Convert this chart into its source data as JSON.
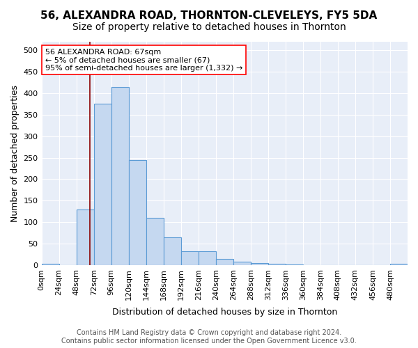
{
  "title": "56, ALEXANDRA ROAD, THORNTON-CLEVELEYS, FY5 5DA",
  "subtitle": "Size of property relative to detached houses in Thornton",
  "xlabel": "Distribution of detached houses by size in Thornton",
  "ylabel": "Number of detached properties",
  "footer_line1": "Contains HM Land Registry data © Crown copyright and database right 2024.",
  "footer_line2": "Contains public sector information licensed under the Open Government Licence v3.0.",
  "bin_labels": [
    "0sqm",
    "24sqm",
    "48sqm",
    "72sqm",
    "96sqm",
    "120sqm",
    "144sqm",
    "168sqm",
    "192sqm",
    "216sqm",
    "240sqm",
    "264sqm",
    "288sqm",
    "312sqm",
    "336sqm",
    "360sqm",
    "384sqm",
    "408sqm",
    "432sqm",
    "456sqm",
    "480sqm"
  ],
  "bar_values": [
    3,
    0,
    130,
    375,
    415,
    245,
    110,
    64,
    33,
    33,
    15,
    8,
    5,
    3,
    1,
    0,
    0,
    0,
    0,
    0,
    3
  ],
  "bar_color": "#c5d8f0",
  "bar_edge_color": "#5b9bd5",
  "vline_x": 67,
  "vline_color": "#8b0000",
  "annotation_text_line1": "56 ALEXANDRA ROAD: 67sqm",
  "annotation_text_line2": "← 5% of detached houses are smaller (67)",
  "annotation_text_line3": "95% of semi-detached houses are larger (1,332) →",
  "ylim": [
    0,
    520
  ],
  "yticks": [
    0,
    50,
    100,
    150,
    200,
    250,
    300,
    350,
    400,
    450,
    500
  ],
  "background_color": "#e8eef8",
  "title_fontsize": 11,
  "subtitle_fontsize": 10,
  "axis_label_fontsize": 9,
  "tick_fontsize": 8,
  "annotation_fontsize": 8,
  "footer_fontsize": 7
}
